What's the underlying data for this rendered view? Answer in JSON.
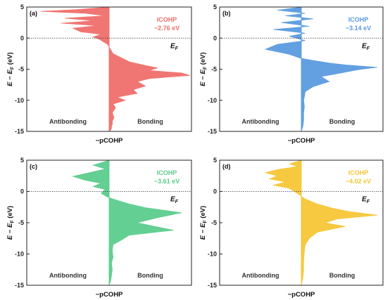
{
  "chart_data": [
    {
      "type": "area",
      "panel_label": "(a)",
      "annotation": {
        "title": "ICOHP",
        "value": "−2.76 eV"
      },
      "color": "#ef6f6b",
      "ylabel": "E − E_F (eV)",
      "xlabel": "−pCOHP",
      "ylim": [
        -15,
        5
      ],
      "yticks": [
        5,
        0,
        -5,
        -10,
        -15
      ],
      "fermi_label": "E_F",
      "region_labels": {
        "left": "Antibonding",
        "right": "Bonding"
      },
      "x": [
        0,
        -0.4,
        -0.85,
        -0.3,
        -0.05,
        -0.55,
        -0.2,
        -0.6,
        -0.15,
        -0.45,
        -0.35,
        -0.1,
        -0.2,
        -0.12,
        -0.02,
        0.05,
        0.25,
        0.45,
        0.6,
        0.5,
        0.9,
        1.0,
        0.5,
        0.35,
        0.45,
        0.3,
        0.35,
        0.1,
        0.2,
        0.05,
        0.08,
        0.04,
        0.06,
        0.04,
        0.04,
        0.03,
        0.03,
        0.02,
        0
      ],
      "energy": [
        5,
        4.6,
        4.3,
        4.0,
        3.6,
        3.2,
        2.8,
        2.4,
        2.0,
        1.6,
        1.0,
        0.6,
        0.2,
        -0.2,
        -1.0,
        -2.5,
        -3.8,
        -4.4,
        -4.8,
        -5.2,
        -5.6,
        -6.0,
        -6.5,
        -7.0,
        -7.7,
        -8.3,
        -8.9,
        -9.5,
        -10.0,
        -10.6,
        -11.2,
        -12.0,
        -12.8,
        -13.4,
        -13.8,
        -14.2,
        -14.5,
        -14.8,
        -15
      ]
    },
    {
      "type": "area",
      "panel_label": "(b)",
      "annotation": {
        "title": "ICOHP",
        "value": "−3.14 eV"
      },
      "color": "#5b9be0",
      "ylabel": "E − E_F (eV)",
      "xlabel": "−pCOHP",
      "ylim": [
        -15,
        5
      ],
      "yticks": [
        5,
        0,
        -5,
        -10,
        -15
      ],
      "fermi_label": "E_F",
      "region_labels": {
        "left": "Antibonding",
        "right": "Bonding"
      },
      "x": [
        0,
        -0.3,
        0.05,
        -0.2,
        0.15,
        -0.25,
        0.1,
        -0.35,
        0.05,
        -0.15,
        0.05,
        -0.3,
        -0.45,
        -0.15,
        -0.02,
        0.15,
        0.35,
        0.55,
        0.95,
        0.7,
        0.5,
        0.25,
        0.35,
        0.15,
        0.05,
        0.03,
        0.04,
        0.03,
        0.03,
        0.02,
        0
      ],
      "energy": [
        5,
        4.5,
        4.0,
        3.6,
        3.1,
        2.5,
        1.9,
        1.4,
        0.8,
        0.3,
        -0.4,
        -1.0,
        -1.8,
        -2.6,
        -3.2,
        -3.6,
        -4.0,
        -4.3,
        -4.7,
        -5.1,
        -5.6,
        -6.2,
        -7.0,
        -7.8,
        -8.6,
        -10.0,
        -11.0,
        -12.0,
        -13.2,
        -14.2,
        -15
      ]
    },
    {
      "type": "area",
      "panel_label": "(c)",
      "annotation": {
        "title": "ICOHP",
        "value": "−3.61 eV"
      },
      "color": "#5ccc8c",
      "ylabel": "E − E_F (eV)",
      "xlabel": "−pCOHP",
      "ylim": [
        -15,
        5
      ],
      "yticks": [
        5,
        0,
        -5,
        -10,
        -15
      ],
      "fermi_label": "E_F",
      "region_labels": {
        "left": "Antibonding",
        "right": "Bonding"
      },
      "x": [
        0,
        -0.2,
        -0.05,
        -0.25,
        -0.45,
        -0.3,
        -0.1,
        -0.2,
        -0.05,
        -0.1,
        -0.02,
        0.1,
        0.25,
        0.45,
        0.9,
        0.6,
        0.35,
        0.8,
        0.25,
        0.15,
        0.05,
        0.04,
        0.05,
        0.03,
        0.04,
        0.03,
        0.02,
        0
      ],
      "energy": [
        5,
        4.2,
        3.6,
        3.0,
        2.4,
        1.8,
        1.3,
        0.8,
        0.3,
        -0.3,
        -0.9,
        -1.4,
        -2.0,
        -2.6,
        -3.4,
        -4.2,
        -5.0,
        -6.2,
        -7.0,
        -7.8,
        -8.5,
        -9.5,
        -10.5,
        -11.5,
        -12.5,
        -13.5,
        -14.3,
        -15
      ]
    },
    {
      "type": "area",
      "panel_label": "(d)",
      "annotation": {
        "title": "ICOHP",
        "value": "−4.02 eV"
      },
      "color": "#f5c637",
      "ylabel": "E − E_F (eV)",
      "xlabel": "−pCOHP",
      "ylim": [
        -15,
        5
      ],
      "yticks": [
        5,
        0,
        -5,
        -10,
        -15
      ],
      "fermi_label": "E_F",
      "region_labels": {
        "left": "Antibonding",
        "right": "Bonding"
      },
      "x": [
        0,
        -0.15,
        -0.05,
        -0.3,
        -0.45,
        -0.3,
        -0.4,
        -0.2,
        -0.35,
        -0.15,
        -0.05,
        0.05,
        0.2,
        0.4,
        0.6,
        0.95,
        0.45,
        0.3,
        0.55,
        0.2,
        0.1,
        0.05,
        0.04,
        0.03,
        0.03,
        0.02,
        0
      ],
      "energy": [
        5,
        4.4,
        4.0,
        3.5,
        3.0,
        2.5,
        2.0,
        1.5,
        1.0,
        0.5,
        -0.3,
        -1.2,
        -2.0,
        -2.7,
        -3.2,
        -3.8,
        -4.4,
        -5.0,
        -5.6,
        -6.5,
        -7.5,
        -8.5,
        -9.5,
        -11.0,
        -12.5,
        -13.8,
        -15
      ]
    }
  ]
}
